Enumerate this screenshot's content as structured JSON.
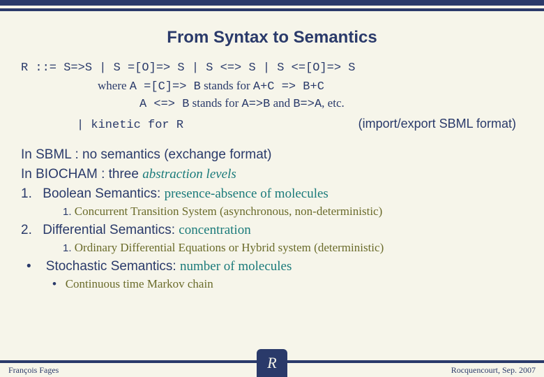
{
  "title": "From Syntax to Semantics",
  "grammar": "R ::= S=>S | S =[O]=> S | S <=> S | S <=[O]=> S",
  "where_prefix": "where",
  "where1_a": "A =[C]=> B",
  "where1_mid": "stands for",
  "where1_b": "A+C => B+C",
  "where2_a": "A <=> B",
  "where2_mid": "stands for",
  "where2_b1": "A=>B",
  "where2_and": "and",
  "where2_b2": "B=>A",
  "where2_tail": ", etc.",
  "kinetic_left": "| kinetic for R",
  "kinetic_right": "(import/export SBML format)",
  "body1": "In SBML : no semantics (exchange format)",
  "body2_a": "In BIOCHAM : three",
  "body2_b": "abstraction levels",
  "item1_num": "1.",
  "item1_a": "Boolean Semantics:",
  "item1_b": "presence-absence of molecules",
  "sub1_num": "1.",
  "sub1_text": "Concurrent Transition System (asynchronous, non-deterministic)",
  "item2_num": "2.",
  "item2_a": "Differential Semantics:",
  "item2_b": "concentration",
  "sub2_num": "1.",
  "sub2_text": "Ordinary Differential Equations or Hybrid system (deterministic)",
  "item3_bullet": "•",
  "item3_a": "Stochastic Semantics:",
  "item3_b": "number of molecules",
  "sub3_bullet": "•",
  "sub3_text": "Continuous time Markov chain",
  "footer_left": "François Fages",
  "footer_right": "Rocquencourt, Sep. 2007",
  "logo_letter": "R",
  "colors": {
    "background": "#f6f5ea",
    "primary": "#2a3a6a",
    "accent": "#6a6b2a",
    "italic_teal": "#1a7a7a"
  }
}
